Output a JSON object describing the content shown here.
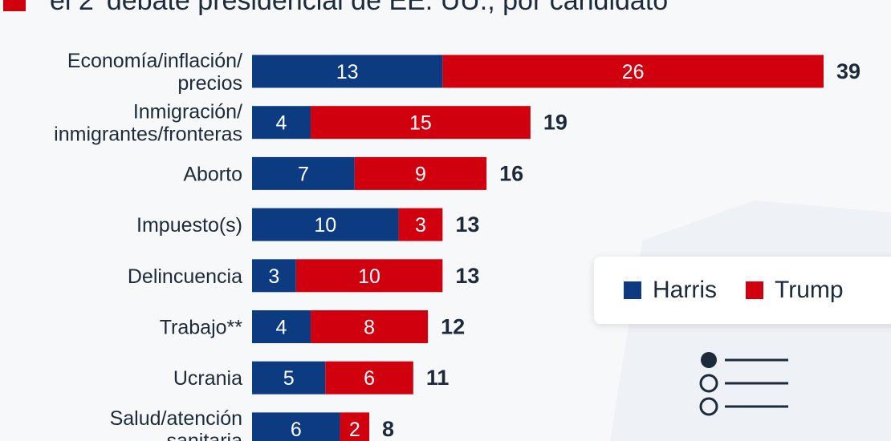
{
  "title": {
    "prefix": "el 2",
    "superscript": "º",
    "main": " debate presidencial de EE. UU., por candidato"
  },
  "colors": {
    "harris": "#0d3b82",
    "trump": "#d1000f",
    "text": "#1c2a3a"
  },
  "legend": {
    "items": [
      {
        "label": "Harris",
        "color": "#0d3b82"
      },
      {
        "label": "Trump",
        "color": "#d1000f"
      }
    ]
  },
  "decorative": {
    "icon": "list-radio-icon"
  },
  "chart_data": {
    "type": "bar",
    "orientation": "horizontal",
    "stacked": true,
    "categories": [
      [
        "Economía/inflación/",
        "precios"
      ],
      [
        "Inmigración/",
        "inmigrantes/fronteras"
      ],
      [
        "Aborto"
      ],
      [
        "Impuesto(s)"
      ],
      [
        "Delincuencia"
      ],
      [
        "Trabajo**"
      ],
      [
        "Ucrania"
      ],
      [
        "Salud/atención",
        "sanitaria"
      ]
    ],
    "series": [
      {
        "name": "Harris",
        "values": [
          13,
          4,
          7,
          10,
          3,
          4,
          5,
          6
        ]
      },
      {
        "name": "Trump",
        "values": [
          26,
          15,
          9,
          3,
          10,
          8,
          6,
          2
        ]
      }
    ],
    "totals": [
      39,
      19,
      16,
      13,
      13,
      12,
      11,
      8
    ],
    "xlim": [
      0,
      39
    ],
    "legend_position": "right",
    "grid": false
  }
}
